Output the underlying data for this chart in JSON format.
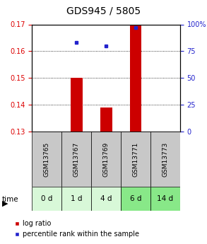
{
  "title": "GDS945 / 5805",
  "samples": [
    "GSM13765",
    "GSM13767",
    "GSM13769",
    "GSM13771",
    "GSM13773"
  ],
  "time_labels": [
    "0 d",
    "1 d",
    "4 d",
    "6 d",
    "14 d"
  ],
  "log_ratio": [
    null,
    0.15,
    0.139,
    0.17,
    null
  ],
  "log_ratio_base": 0.13,
  "percentile_rank": [
    null,
    83,
    80,
    97,
    null
  ],
  "ylim_left": [
    0.13,
    0.17
  ],
  "ylim_right": [
    0,
    100
  ],
  "yticks_left": [
    0.13,
    0.14,
    0.15,
    0.16,
    0.17
  ],
  "yticks_right": [
    0,
    25,
    50,
    75,
    100
  ],
  "bar_color": "#cc0000",
  "dot_color": "#2222cc",
  "bar_width": 0.4,
  "bg_color_samples": "#c8c8c8",
  "bg_color_time_light": "#d8f8d8",
  "bg_color_time_dark": "#88e888",
  "left_tick_color": "#dd0000",
  "right_tick_color": "#2222cc",
  "title_fontsize": 10,
  "tick_fontsize": 7,
  "legend_fontsize": 7,
  "sample_label_fontsize": 6.5,
  "time_label_fontsize": 7.5
}
